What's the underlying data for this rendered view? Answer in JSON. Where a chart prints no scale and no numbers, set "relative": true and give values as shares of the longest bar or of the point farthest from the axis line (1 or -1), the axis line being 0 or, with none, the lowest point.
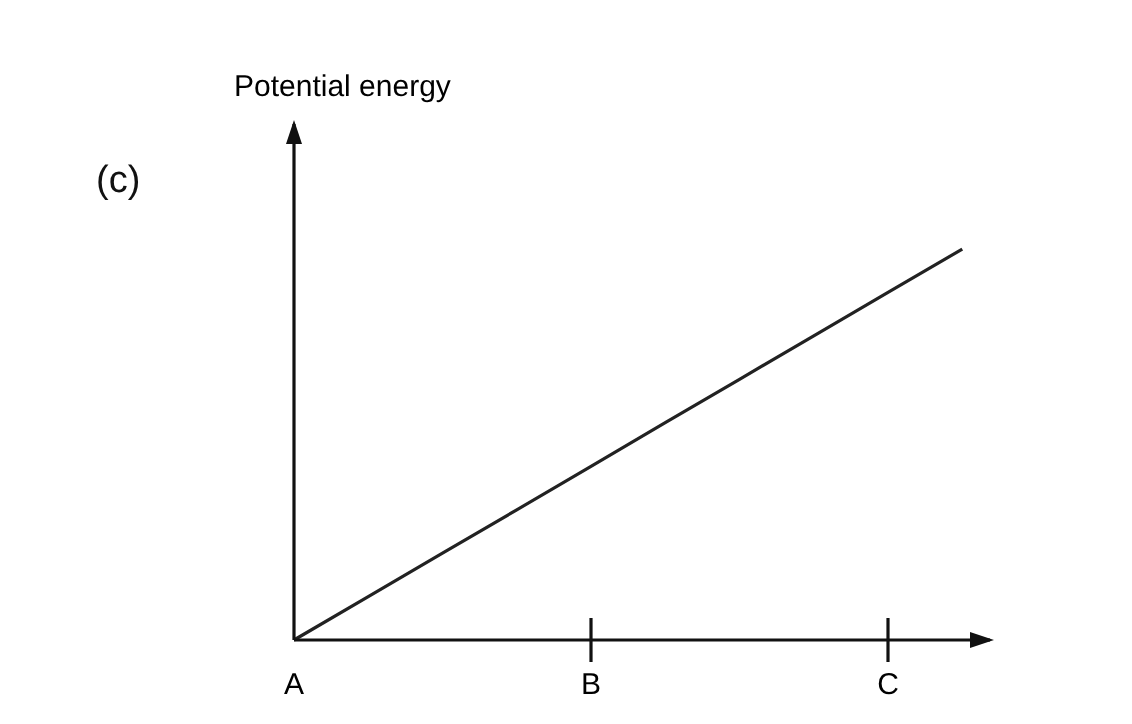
{
  "chart_data": {
    "type": "line",
    "ylabel": "Potential energy",
    "annotations": [
      "(c)"
    ],
    "relative": true,
    "categories": [
      "A",
      null,
      null,
      null,
      "B",
      null,
      null,
      null,
      "C",
      null
    ],
    "series": [
      {
        "color": "#222222",
        "values": [
          0,
          0.111,
          0.222,
          0.333,
          0.444,
          0.556,
          0.667,
          0.778,
          0.889,
          1
        ]
      }
    ],
    "grid": false,
    "marker": "none",
    "line_style": "solid",
    "tick_labels": "x"
  }
}
